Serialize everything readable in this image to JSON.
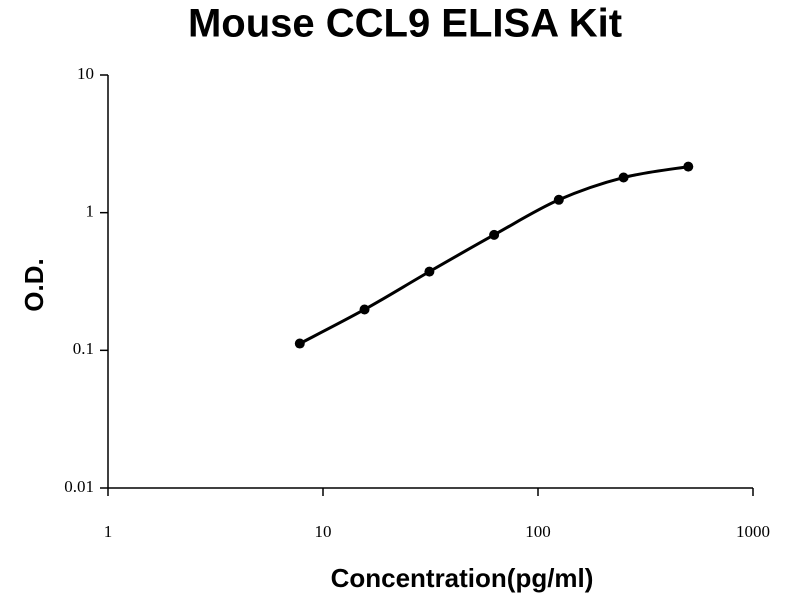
{
  "chart_data": {
    "type": "scatter",
    "title": "Mouse CCL9 ELISA Kit",
    "x_label": "Concentration(pg/ml)",
    "y_label": "O.D.",
    "x": [
      7.8,
      15.6,
      31.25,
      62.5,
      125,
      250,
      500
    ],
    "values": [
      0.112,
      0.198,
      0.373,
      0.69,
      1.24,
      1.8,
      2.16
    ],
    "color": "#000000",
    "line": true,
    "xscale": "log",
    "yscale": "log",
    "xlim": [
      1,
      1000
    ],
    "ylim": [
      0.01,
      10
    ],
    "xticks": [
      1,
      10,
      100,
      1000
    ],
    "yticks": [
      0.01,
      0.1,
      1,
      10
    ]
  }
}
